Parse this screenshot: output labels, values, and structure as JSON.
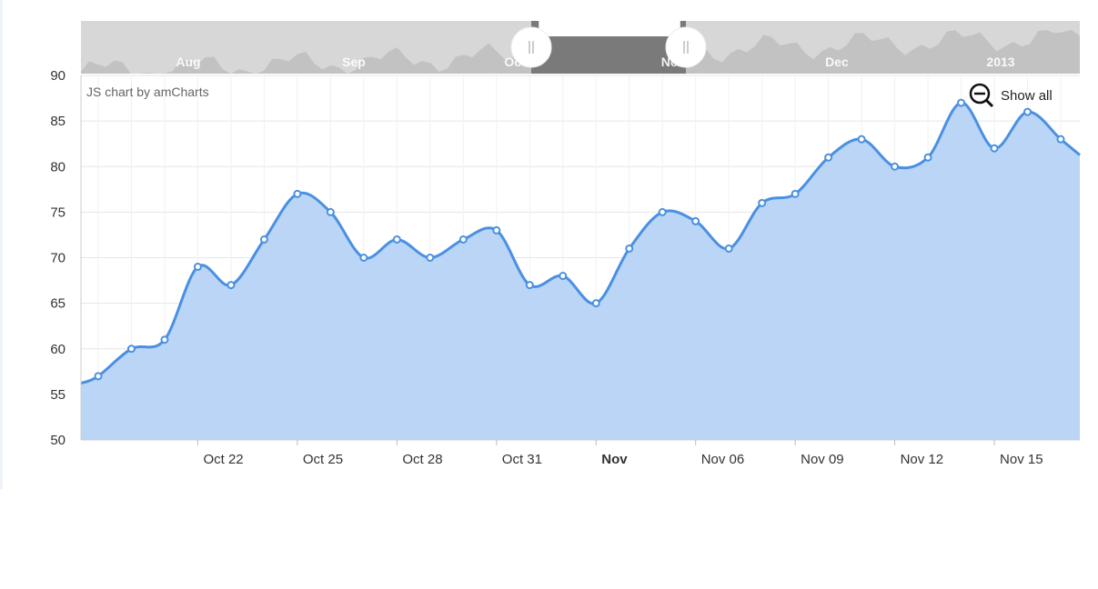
{
  "credit": "JS chart by amCharts",
  "zoom": {
    "show_all_label": "Show all",
    "icon": "zoom-out-icon"
  },
  "colors": {
    "line": "#4a90e2",
    "fill": "#b6d3f5",
    "grid": "#e6e6e6",
    "scrollbar_bg": "#d7d7d7",
    "scrollbar_selected": "#7a7a7a"
  },
  "scrollbar": {
    "labels": [
      "Aug",
      "Sep",
      "Oct",
      "Nov",
      "Dec",
      "2013"
    ],
    "grip_icon": "drag-grip-icon"
  },
  "chart_data": {
    "type": "area",
    "title": "",
    "xlabel": "",
    "ylabel": "",
    "ylim": [
      50,
      90
    ],
    "yticks": [
      50,
      55,
      60,
      65,
      70,
      75,
      80,
      85,
      90
    ],
    "xlim": [
      "Oct 19",
      "Nov 17"
    ],
    "xtick_labels": [
      {
        "date": "Oct 22",
        "label": "Oct 22"
      },
      {
        "date": "Oct 25",
        "label": "Oct 25"
      },
      {
        "date": "Oct 28",
        "label": "Oct 28"
      },
      {
        "date": "Oct 31",
        "label": "Oct 31"
      },
      {
        "date": "Nov 03",
        "label": "Nov",
        "bold": true
      },
      {
        "date": "Nov 06",
        "label": "Nov 06"
      },
      {
        "date": "Nov 09",
        "label": "Nov 09"
      },
      {
        "date": "Nov 12",
        "label": "Nov 12"
      },
      {
        "date": "Nov 15",
        "label": "Nov 15"
      }
    ],
    "grid": true,
    "series": [
      {
        "x": [
          "Oct 19",
          "Oct 20",
          "Oct 21",
          "Oct 22",
          "Oct 23",
          "Oct 24",
          "Oct 25",
          "Oct 26",
          "Oct 27",
          "Oct 28",
          "Oct 29",
          "Oct 30",
          "Oct 31",
          "Nov 01",
          "Nov 02",
          "Nov 03",
          "Nov 04",
          "Nov 05",
          "Nov 06",
          "Nov 07",
          "Nov 08",
          "Nov 09",
          "Nov 10",
          "Nov 11",
          "Nov 12",
          "Nov 13",
          "Nov 14",
          "Nov 15",
          "Nov 16",
          "Nov 17"
        ],
        "y": [
          57,
          60,
          61,
          69,
          67,
          72,
          77,
          75,
          70,
          72,
          70,
          72,
          73,
          67,
          68,
          65,
          71,
          75,
          74,
          71,
          76,
          77,
          81,
          83,
          80,
          81,
          87,
          82,
          86,
          83
        ]
      }
    ]
  }
}
